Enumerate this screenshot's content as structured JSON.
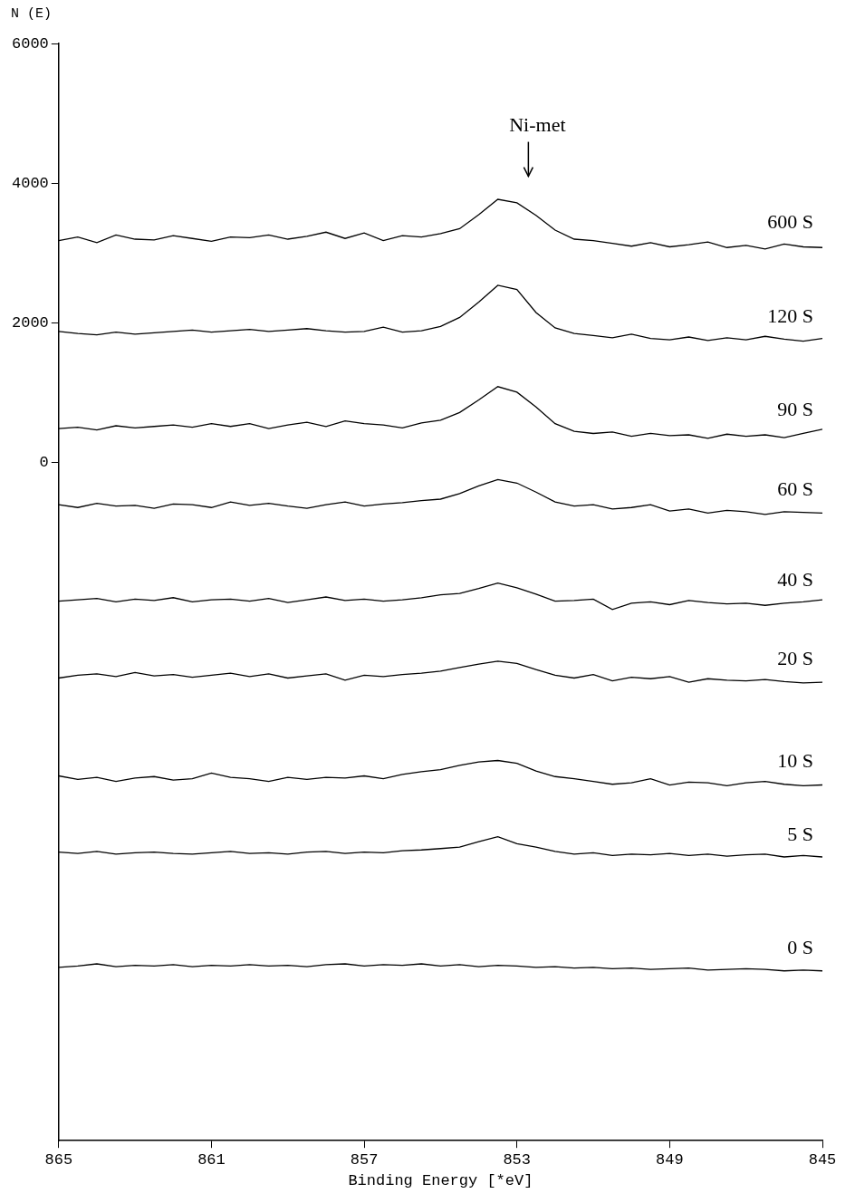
{
  "chart_data": {
    "type": "line",
    "xlabel": "Binding Energy [*eV]",
    "ylabel": "N (E)",
    "xlim": [
      865,
      845
    ],
    "xticks": [
      865,
      861,
      857,
      853,
      849,
      845
    ],
    "ylim": [
      -9700,
      6000
    ],
    "yticks": [
      0,
      2000,
      4000,
      6000
    ],
    "grid": false,
    "color": "#000000",
    "annotations": [
      {
        "text": "Ni-met",
        "x": 852.7,
        "y": 4100
      }
    ],
    "x": [
      865,
      864.5,
      864,
      863.5,
      863,
      862.5,
      862,
      861.5,
      861,
      860.5,
      860,
      859.5,
      859,
      858.5,
      858,
      857.5,
      857,
      856.5,
      856,
      855.5,
      855,
      854.5,
      854,
      853.5,
      853,
      852.5,
      852,
      851.5,
      851,
      850.5,
      850,
      849.5,
      849,
      848.5,
      848,
      847.5,
      847,
      846.5,
      846,
      845.5,
      845
    ],
    "series": [
      {
        "name": "600 S",
        "values": [
          3180,
          3230,
          3150,
          3260,
          3200,
          3190,
          3250,
          3210,
          3170,
          3230,
          3220,
          3260,
          3200,
          3240,
          3300,
          3210,
          3290,
          3180,
          3250,
          3230,
          3280,
          3350,
          3550,
          3770,
          3720,
          3540,
          3330,
          3200,
          3180,
          3140,
          3100,
          3150,
          3090,
          3120,
          3160,
          3080,
          3110,
          3060,
          3130,
          3090,
          3080
        ]
      },
      {
        "name": "120 S",
        "values": [
          1880,
          1850,
          1830,
          1870,
          1840,
          1860,
          1880,
          1900,
          1870,
          1890,
          1910,
          1880,
          1900,
          1920,
          1890,
          1870,
          1880,
          1940,
          1870,
          1890,
          1950,
          2080,
          2300,
          2540,
          2480,
          2150,
          1930,
          1850,
          1820,
          1790,
          1840,
          1780,
          1760,
          1800,
          1750,
          1790,
          1760,
          1810,
          1770,
          1740,
          1780
        ]
      },
      {
        "name": "90 S",
        "values": [
          490,
          510,
          470,
          530,
          500,
          520,
          540,
          510,
          560,
          520,
          560,
          490,
          540,
          580,
          520,
          600,
          560,
          540,
          500,
          570,
          610,
          720,
          900,
          1090,
          1010,
          800,
          560,
          450,
          420,
          440,
          380,
          420,
          390,
          400,
          350,
          410,
          380,
          400,
          360,
          420,
          480
        ]
      },
      {
        "name": "60 S",
        "values": [
          -600,
          -640,
          -580,
          -620,
          -610,
          -650,
          -590,
          -600,
          -640,
          -560,
          -610,
          -580,
          -620,
          -650,
          -600,
          -560,
          -620,
          -590,
          -570,
          -540,
          -520,
          -440,
          -330,
          -240,
          -290,
          -420,
          -560,
          -620,
          -600,
          -660,
          -640,
          -600,
          -690,
          -660,
          -720,
          -680,
          -700,
          -740,
          -700,
          -710,
          -720
        ]
      },
      {
        "name": "40 S",
        "values": [
          -1980,
          -1960,
          -1940,
          -1990,
          -1950,
          -1970,
          -1930,
          -1990,
          -1960,
          -1950,
          -1980,
          -1940,
          -2000,
          -1960,
          -1920,
          -1970,
          -1950,
          -1980,
          -1960,
          -1930,
          -1890,
          -1870,
          -1800,
          -1720,
          -1790,
          -1880,
          -1980,
          -1970,
          -1950,
          -2100,
          -2010,
          -1990,
          -2030,
          -1970,
          -2000,
          -2020,
          -2010,
          -2040,
          -2010,
          -1990,
          -1960
        ]
      },
      {
        "name": "20 S",
        "values": [
          -3080,
          -3040,
          -3020,
          -3060,
          -3000,
          -3050,
          -3030,
          -3070,
          -3040,
          -3010,
          -3060,
          -3020,
          -3080,
          -3050,
          -3020,
          -3110,
          -3040,
          -3060,
          -3030,
          -3010,
          -2980,
          -2930,
          -2880,
          -2840,
          -2870,
          -2960,
          -3040,
          -3080,
          -3030,
          -3120,
          -3070,
          -3090,
          -3060,
          -3140,
          -3090,
          -3110,
          -3120,
          -3100,
          -3130,
          -3150,
          -3140
        ]
      },
      {
        "name": "10 S",
        "values": [
          -4480,
          -4530,
          -4500,
          -4560,
          -4510,
          -4490,
          -4540,
          -4520,
          -4440,
          -4500,
          -4520,
          -4560,
          -4500,
          -4530,
          -4500,
          -4510,
          -4480,
          -4520,
          -4460,
          -4420,
          -4390,
          -4330,
          -4280,
          -4260,
          -4300,
          -4410,
          -4490,
          -4520,
          -4560,
          -4600,
          -4580,
          -4520,
          -4610,
          -4570,
          -4580,
          -4620,
          -4580,
          -4560,
          -4600,
          -4620,
          -4610
        ]
      },
      {
        "name": "5 S",
        "values": [
          -5570,
          -5590,
          -5560,
          -5600,
          -5580,
          -5570,
          -5590,
          -5600,
          -5580,
          -5560,
          -5590,
          -5580,
          -5600,
          -5570,
          -5560,
          -5590,
          -5570,
          -5580,
          -5550,
          -5540,
          -5520,
          -5500,
          -5420,
          -5350,
          -5450,
          -5500,
          -5560,
          -5600,
          -5580,
          -5620,
          -5600,
          -5610,
          -5590,
          -5620,
          -5600,
          -5630,
          -5610,
          -5600,
          -5640,
          -5620,
          -5640
        ]
      },
      {
        "name": "0 S",
        "values": [
          -7220,
          -7200,
          -7170,
          -7210,
          -7190,
          -7200,
          -7180,
          -7210,
          -7190,
          -7200,
          -7180,
          -7200,
          -7190,
          -7210,
          -7180,
          -7170,
          -7200,
          -7180,
          -7190,
          -7170,
          -7200,
          -7180,
          -7210,
          -7190,
          -7200,
          -7220,
          -7210,
          -7230,
          -7220,
          -7240,
          -7230,
          -7250,
          -7240,
          -7230,
          -7260,
          -7250,
          -7240,
          -7250,
          -7270,
          -7260,
          -7270
        ]
      }
    ]
  }
}
